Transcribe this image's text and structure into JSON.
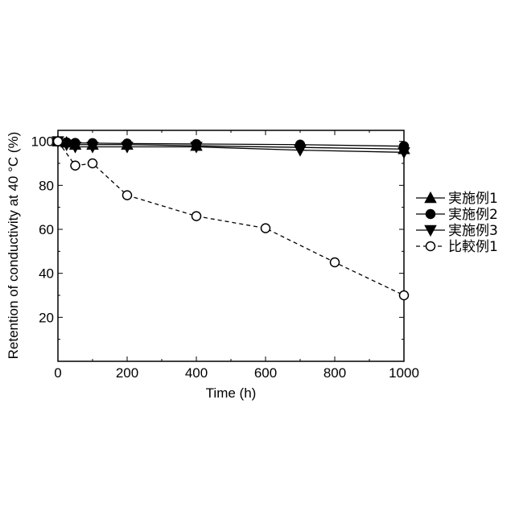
{
  "chart_data": {
    "type": "line",
    "xlabel": "Time (h)",
    "ylabel": "Retention of conductivity at 40 °C (%)",
    "xlim": [
      0,
      1000
    ],
    "ylim": [
      0,
      105
    ],
    "xticks": [
      0,
      200,
      400,
      600,
      800,
      1000
    ],
    "yticks": [
      20,
      40,
      60,
      80,
      100
    ],
    "grid": false,
    "legend_position": "right",
    "series": [
      {
        "name": "実施例1",
        "marker": "triangle-up",
        "filled": true,
        "dashed": false,
        "x": [
          0,
          25,
          50,
          100,
          200,
          400,
          1000
        ],
        "y": [
          100,
          99.5,
          98.5,
          98.5,
          98.5,
          98,
          96.5
        ]
      },
      {
        "name": "実施例2",
        "marker": "circle",
        "filled": true,
        "dashed": false,
        "x": [
          0,
          25,
          50,
          100,
          200,
          400,
          700,
          1000
        ],
        "y": [
          100,
          99.5,
          99.3,
          99.2,
          99,
          98.8,
          98.5,
          97.8
        ]
      },
      {
        "name": "実施例3",
        "marker": "triangle-down",
        "filled": true,
        "dashed": false,
        "x": [
          0,
          25,
          50,
          100,
          200,
          400,
          700,
          1000
        ],
        "y": [
          100,
          98.5,
          97.5,
          97.5,
          97.5,
          97.5,
          96,
          95
        ]
      },
      {
        "name": "比較例1",
        "marker": "circle",
        "filled": false,
        "dashed": true,
        "x": [
          0,
          50,
          100,
          200,
          400,
          600,
          800,
          1000
        ],
        "y": [
          100,
          89,
          90,
          75.5,
          66,
          60.5,
          45,
          30
        ]
      }
    ]
  }
}
